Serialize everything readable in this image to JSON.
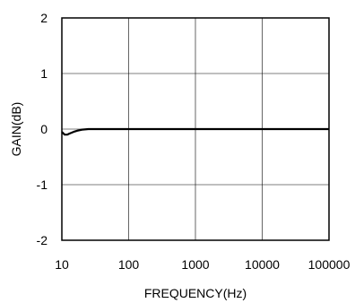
{
  "chart_data": {
    "type": "line",
    "xscale": "log",
    "xlim": [
      10,
      100000
    ],
    "ylim": [
      -2,
      2
    ],
    "xlabel": "FREQUENCY(Hz)",
    "ylabel": "GAIN(dB)",
    "x_ticks": [
      "10",
      "100",
      "1000",
      "10000",
      "100000"
    ],
    "y_ticks": [
      "2",
      "1",
      "0",
      "-1",
      "-2"
    ],
    "grid": true,
    "series": [
      {
        "x": [
          10,
          11,
          12,
          13,
          15,
          17,
          20,
          25,
          30,
          40,
          50,
          70,
          100,
          200,
          500,
          1000,
          2000,
          5000,
          10000,
          20000,
          50000,
          100000
        ],
        "y": [
          -0.05,
          -0.1,
          -0.1,
          -0.08,
          -0.05,
          -0.03,
          -0.01,
          0,
          0,
          0,
          0,
          0,
          0,
          0,
          0,
          0,
          0,
          0,
          0,
          0,
          0,
          0
        ],
        "color": "#000000"
      }
    ]
  }
}
